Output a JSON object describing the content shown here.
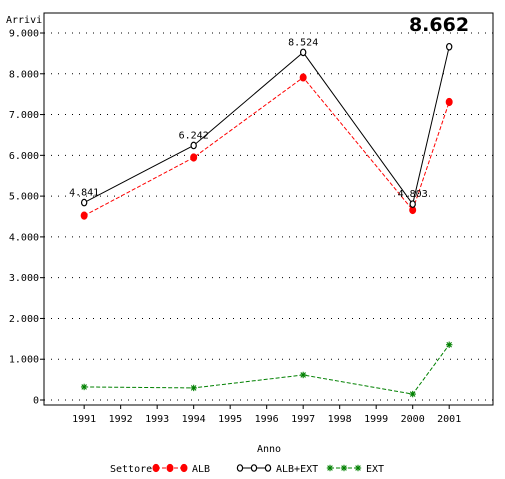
{
  "chart_data": {
    "type": "line",
    "ylabel": "Arrivi",
    "xlabel": "Anno",
    "highlight_label": "8.662",
    "x_ticks": [
      "1991",
      "1992",
      "1993",
      "1994",
      "1995",
      "1996",
      "1997",
      "1998",
      "1999",
      "2000",
      "2001"
    ],
    "x_range": [
      1989.9,
      2002.2
    ],
    "y_ticks": [
      "0",
      "1.000",
      "2.000",
      "3.000",
      "4.000",
      "5.000",
      "6.000",
      "7.000",
      "8.000",
      "9.000"
    ],
    "y_range": [
      0,
      9000
    ],
    "grid": "dotted-horizontal",
    "legend_title": "Settore",
    "legend_position": "bottom",
    "series": [
      {
        "name": "ALB",
        "color": "#ff0000",
        "marker": "filled-circle",
        "line": "dashed",
        "x": [
          1991,
          1994,
          1997,
          2000,
          2001
        ],
        "values": [
          4521,
          5946,
          7910,
          4658,
          7307
        ]
      },
      {
        "name": "ALB+EXT",
        "color": "#000000",
        "marker": "open-circle",
        "line": "solid",
        "x": [
          1991,
          1994,
          1997,
          2000,
          2001
        ],
        "values": [
          4841,
          6242,
          8524,
          4803,
          8662
        ]
      },
      {
        "name": "EXT",
        "color": "#008000",
        "marker": "star",
        "line": "dashed",
        "x": [
          1991,
          1994,
          1997,
          2000,
          2001
        ],
        "values": [
          320,
          296,
          614,
          145,
          1355
        ]
      }
    ],
    "data_labels": [
      {
        "x": 1991,
        "y": 4841,
        "text": "4.841"
      },
      {
        "x": 1994,
        "y": 6242,
        "text": "6.242"
      },
      {
        "x": 1997,
        "y": 8524,
        "text": "8.524"
      },
      {
        "x": 2000,
        "y": 4803,
        "text": "4.803"
      }
    ]
  }
}
